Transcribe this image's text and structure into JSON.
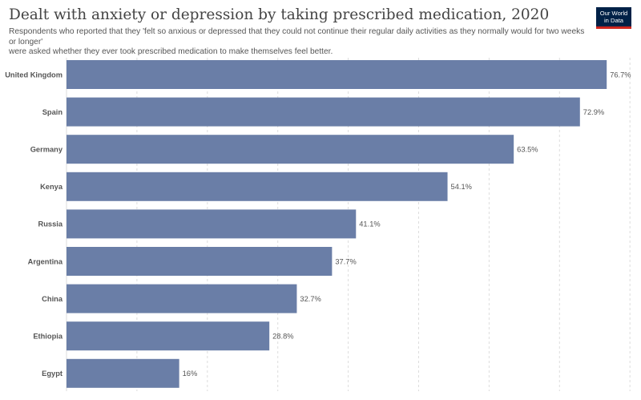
{
  "header": {
    "title": "Dealt with anxiety or depression by taking prescribed medication, 2020",
    "subtitle_line1": "Respondents who reported that they 'felt so anxious or depressed that they could not continue their regular daily activities as they normally would for two weeks or longer'",
    "subtitle_line2": "were asked whether they ever took prescribed medication to make themselves feel better.",
    "logo_line1": "Our World",
    "logo_line2": "in Data"
  },
  "colors": {
    "bar": "#6a7ea7",
    "grid": "#dddddd",
    "logo_bg": "#002147",
    "logo_accent": "#ce261e"
  },
  "chart_data": {
    "type": "bar",
    "orientation": "horizontal",
    "title": "Dealt with anxiety or depression by taking prescribed medication, 2020",
    "categories": [
      "United Kingdom",
      "Spain",
      "Germany",
      "Kenya",
      "Russia",
      "Argentina",
      "China",
      "Ethiopia",
      "Egypt"
    ],
    "values": [
      76.7,
      72.9,
      63.5,
      54.1,
      41.1,
      37.7,
      32.7,
      28.8,
      16
    ],
    "value_labels": [
      "76.7%",
      "72.9%",
      "63.5%",
      "54.1%",
      "41.1%",
      "37.7%",
      "32.7%",
      "28.8%",
      "16%"
    ],
    "xlim": [
      0,
      80
    ],
    "grid": true
  }
}
